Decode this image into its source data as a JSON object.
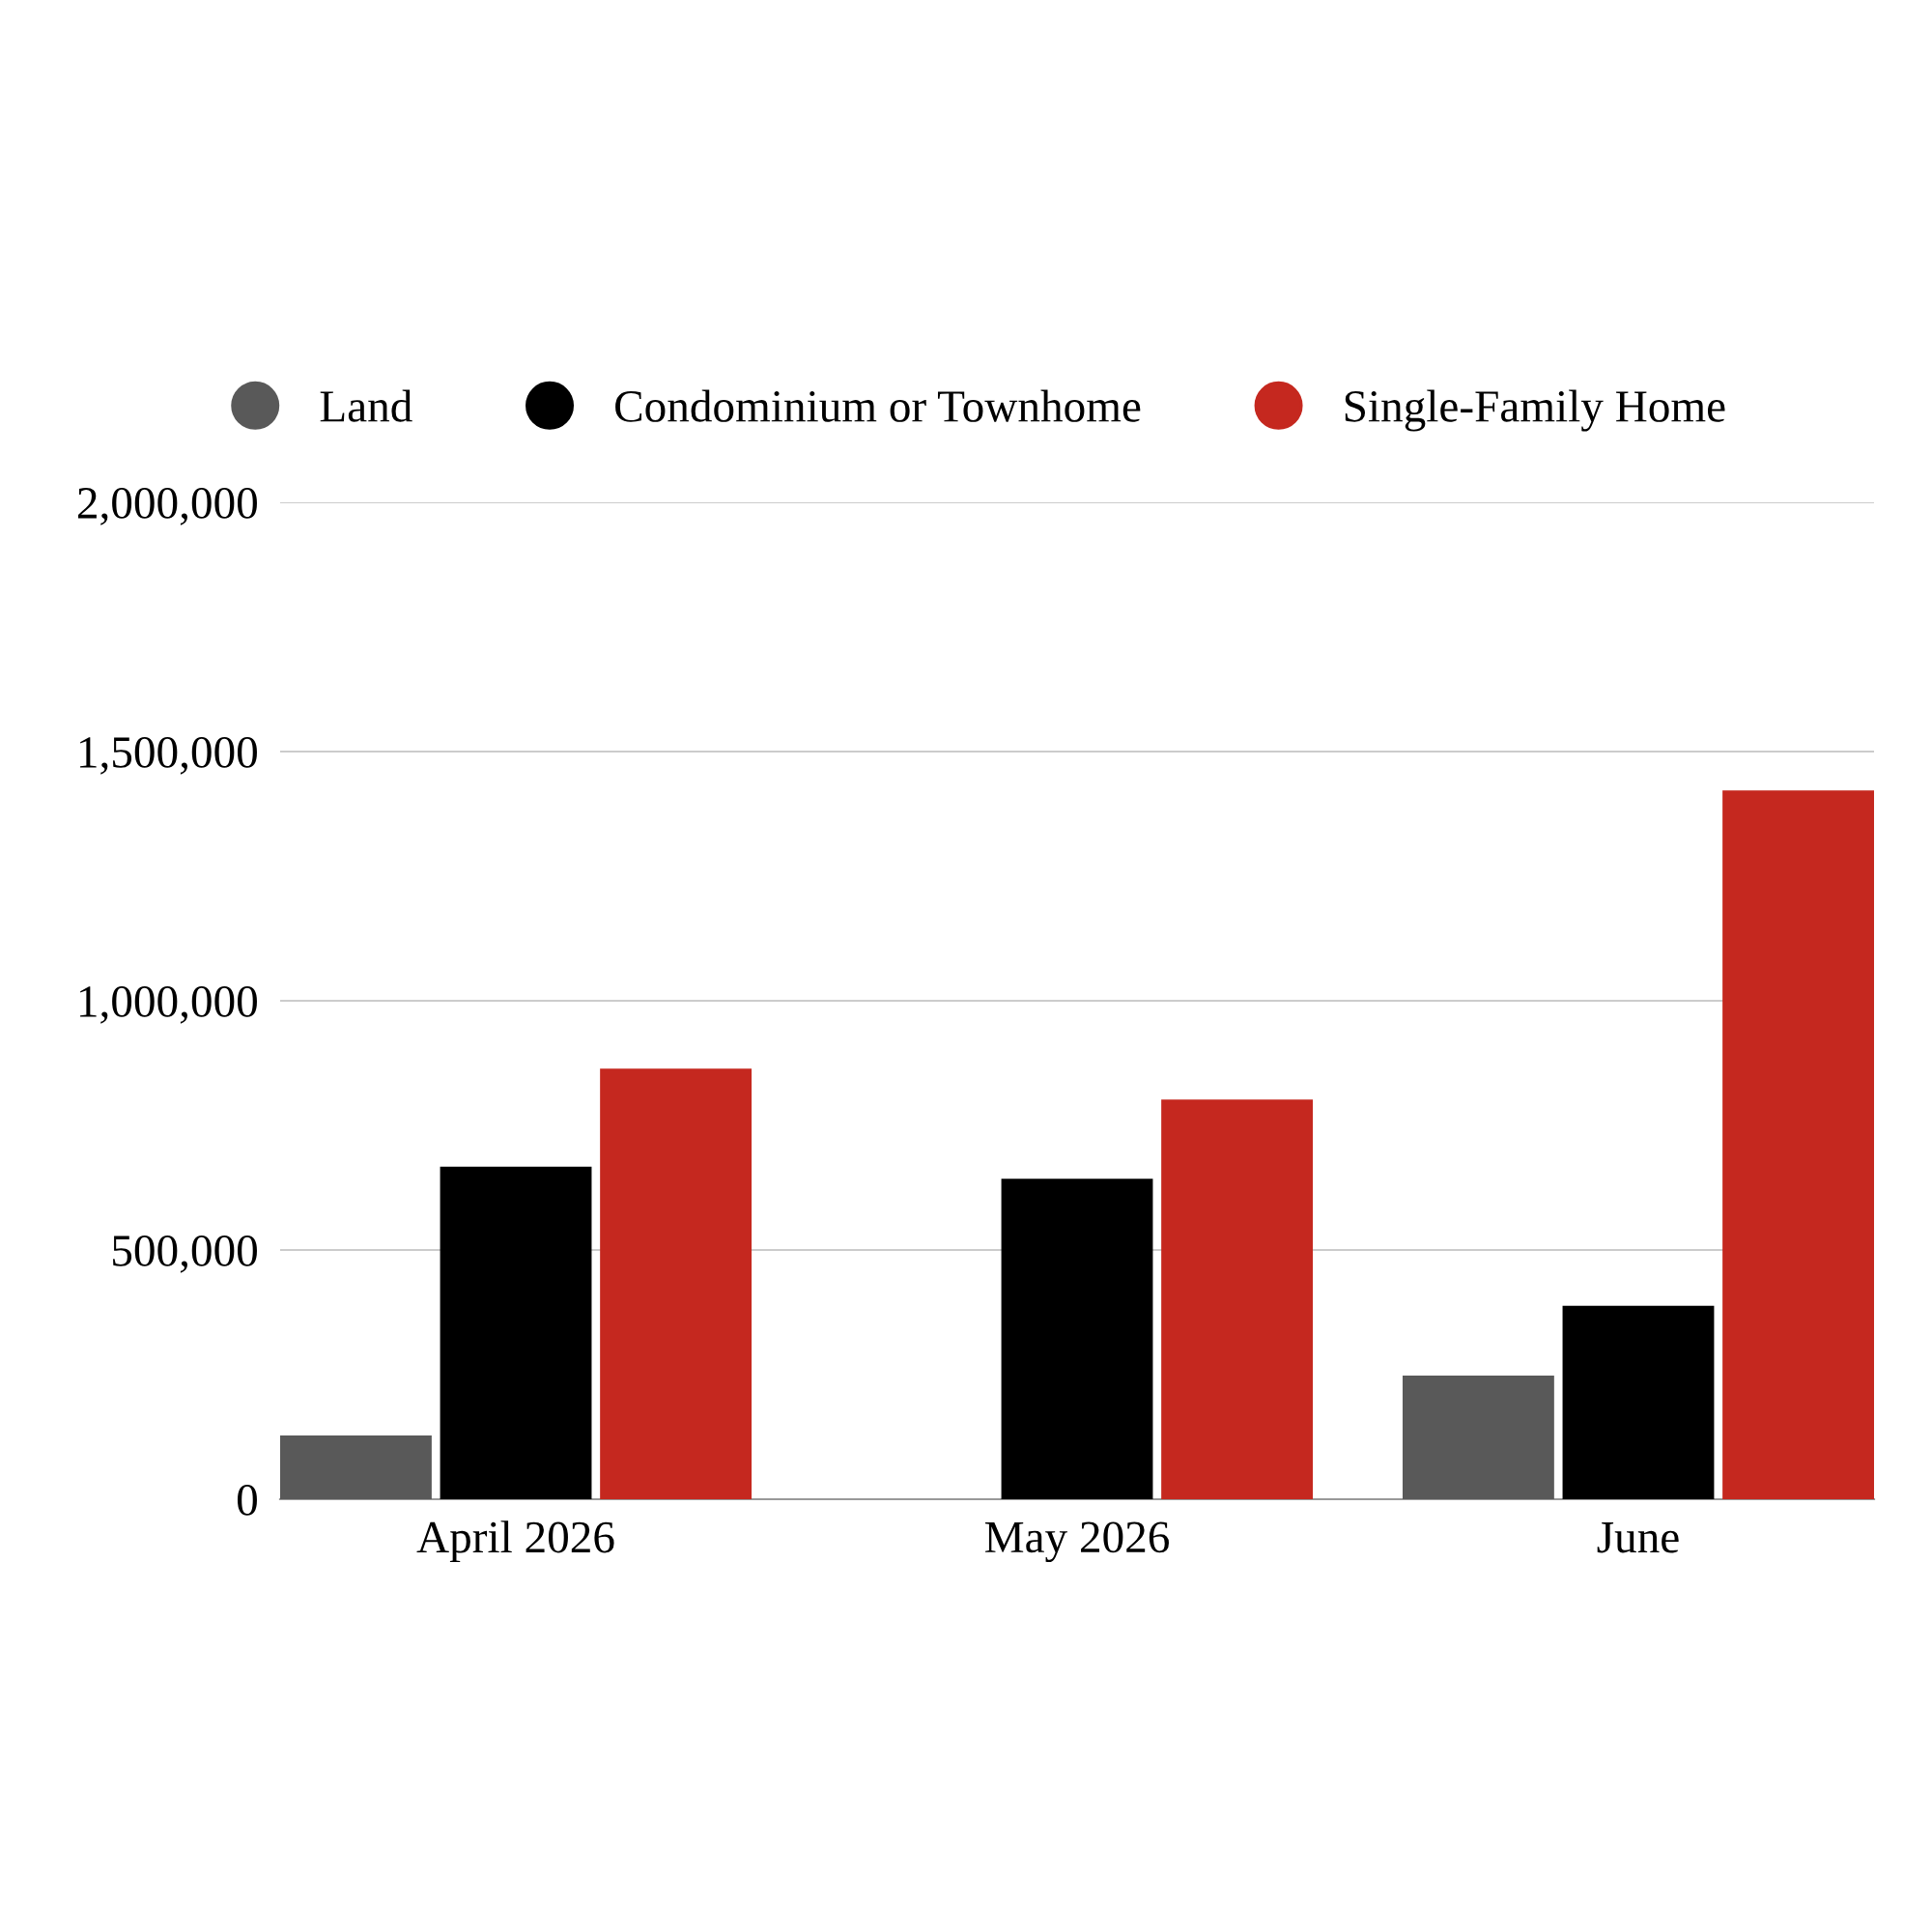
{
  "chart_data": {
    "type": "bar",
    "categories": [
      "April 2026",
      "May 2026",
      "June"
    ],
    "series": [
      {
        "name": "Land",
        "color": "#595959",
        "values": [
          128000,
          null,
          248000
        ]
      },
      {
        "name": "Condominium or Townhome",
        "color": "#000000",
        "values": [
          667000,
          643000,
          388000
        ]
      },
      {
        "name": "Single-Family Home",
        "color": "#c5281f",
        "values": [
          864000,
          802000,
          1422000
        ]
      }
    ],
    "ylim": [
      0,
      2000000
    ],
    "yticks": [
      {
        "value": 0,
        "label": "0"
      },
      {
        "value": 500000,
        "label": "500,000"
      },
      {
        "value": 1000000,
        "label": "1,000,000"
      },
      {
        "value": 1500000,
        "label": "1,500,000"
      },
      {
        "value": 2000000,
        "label": "2,000,000"
      }
    ],
    "grid": "y",
    "legend": "top left"
  }
}
